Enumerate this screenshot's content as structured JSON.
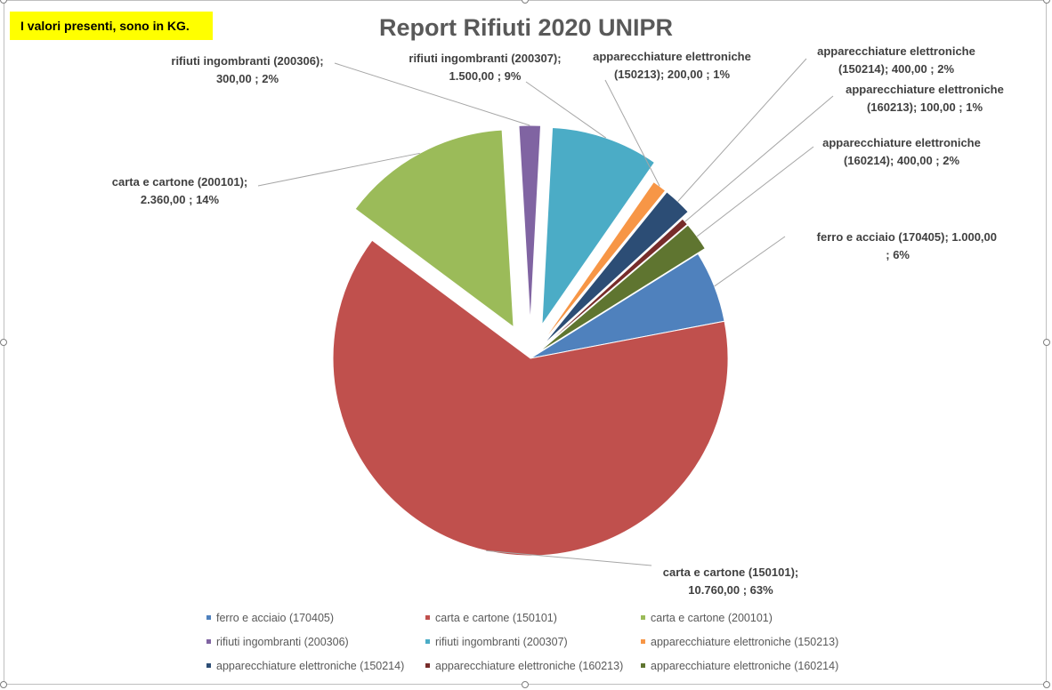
{
  "note": "I valori presenti, sono in KG.",
  "chart_data": {
    "type": "pie",
    "title": "Report Rifiuti 2020 UNIPR",
    "slices": [
      {
        "name": "ferro e acciaio (170405)",
        "value": 1000,
        "value_label": "1.000,00",
        "percent_label": "6%",
        "color": "#4f81bd",
        "label": [
          "ferro e acciaio (170405);  1.000,00",
          "; 6%"
        ]
      },
      {
        "name": "carta e cartone (150101)",
        "value": 10760,
        "value_label": "10.760,00",
        "percent_label": "63%",
        "color": "#c0504d",
        "label": [
          "carta e cartone (150101);",
          "10.760,00 ; 63%"
        ]
      },
      {
        "name": "carta e cartone (200101)",
        "value": 2360,
        "value_label": "2.360,00",
        "percent_label": "14%",
        "color": "#9bbb59",
        "label": [
          "carta e cartone (200101);",
          "2.360,00 ; 14%"
        ]
      },
      {
        "name": "rifiuti ingombranti (200306)",
        "value": 300,
        "value_label": "300,00",
        "percent_label": "2%",
        "color": "#8064a2",
        "label": [
          "rifiuti ingombranti (200306);",
          "300,00 ; 2%"
        ]
      },
      {
        "name": "rifiuti ingombranti (200307)",
        "value": 1500,
        "value_label": "1.500,00",
        "percent_label": "9%",
        "color": "#4bacc6",
        "label": [
          "rifiuti ingombranti (200307);",
          "1.500,00 ; 9%"
        ]
      },
      {
        "name": "apparecchiature elettroniche (150213)",
        "value": 200,
        "value_label": "200,00",
        "percent_label": "1%",
        "color": "#f79646",
        "label": [
          "apparecchiature elettroniche",
          "(150213);  200,00 ; 1%"
        ]
      },
      {
        "name": "apparecchiature elettroniche (150214)",
        "value": 400,
        "value_label": "400,00",
        "percent_label": "2%",
        "color": "#2c4d75",
        "label": [
          "apparecchiature elettroniche",
          "(150214);  400,00 ; 2%"
        ]
      },
      {
        "name": "apparecchiature elettroniche (160213)",
        "value": 100,
        "value_label": "100,00",
        "percent_label": "1%",
        "color": "#772c2a",
        "label": [
          "apparecchiature elettroniche",
          "(160213);  100,00 ; 1%"
        ]
      },
      {
        "name": "apparecchiature elettroniche (160214)",
        "value": 400,
        "value_label": "400,00",
        "percent_label": "2%",
        "color": "#5f7530",
        "label": [
          "apparecchiature elettroniche",
          "(160214);  400,00 ; 2%"
        ]
      }
    ],
    "legend_position": "bottom"
  }
}
